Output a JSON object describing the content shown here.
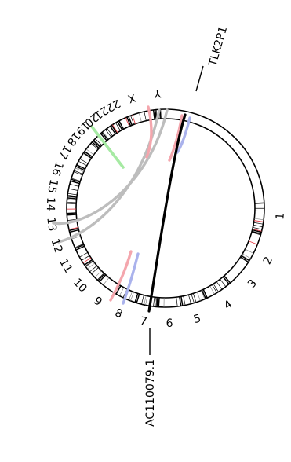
{
  "chromosomes": [
    {
      "label": "1",
      "band_seed": 11
    },
    {
      "label": "2",
      "band_seed": 23
    },
    {
      "label": "3",
      "band_seed": 37
    },
    {
      "label": "4",
      "band_seed": 41
    },
    {
      "label": "5",
      "band_seed": 53
    },
    {
      "label": "6",
      "band_seed": 61
    },
    {
      "label": "7",
      "band_seed": 71
    },
    {
      "label": "8",
      "band_seed": 83
    },
    {
      "label": "9",
      "band_seed": 97
    },
    {
      "label": "10",
      "band_seed": 101
    },
    {
      "label": "11",
      "band_seed": 113
    },
    {
      "label": "12",
      "band_seed": 127
    },
    {
      "label": "13",
      "band_seed": 131
    },
    {
      "label": "14",
      "band_seed": 137
    },
    {
      "label": "15",
      "band_seed": 149
    },
    {
      "label": "16",
      "band_seed": 151
    },
    {
      "label": "17",
      "band_seed": 163
    },
    {
      "label": "18",
      "band_seed": 167
    },
    {
      "label": "19",
      "band_seed": 173
    },
    {
      "label": "20",
      "band_seed": 179
    },
    {
      "label": "21",
      "band_seed": 181
    },
    {
      "label": "22",
      "band_seed": 191
    },
    {
      "label": "X",
      "band_seed": 193
    },
    {
      "label": "Y",
      "band_seed": 197
    }
  ],
  "gene_labels": {
    "top": "TLK2P1",
    "bottom": "AC110079.1"
  },
  "colors": {
    "highlight_link": "#000000",
    "grey_link": "#bdbdbd",
    "red_link": "#f4a6ad",
    "blue_link": "#aab2ec",
    "green_link": "#a6eaa3",
    "band_red": "#e8424b",
    "band_dark": "#000000"
  },
  "links": [
    {
      "name": "highlight-link",
      "color_key": "highlight_link",
      "from": "17",
      "to": "4"
    },
    {
      "name": "grey-link-a",
      "color_key": "grey_link",
      "from": "16",
      "to": "8"
    },
    {
      "name": "grey-link-b",
      "color_key": "grey_link",
      "from": "16",
      "to": "8"
    },
    {
      "name": "red-link-a",
      "color_key": "red_link",
      "from": "15",
      "to": "15"
    },
    {
      "name": "red-link-b",
      "color_key": "red_link",
      "from": "17",
      "to": "17"
    },
    {
      "name": "red-link-c",
      "color_key": "red_link",
      "from": "5",
      "to": "6"
    },
    {
      "name": "blue-link-a",
      "color_key": "blue_link",
      "from": "17",
      "to": "17"
    },
    {
      "name": "blue-link-b",
      "color_key": "blue_link",
      "from": "5",
      "to": "6"
    },
    {
      "name": "green-link",
      "color_key": "green_link",
      "from": "12",
      "to": "11"
    }
  ]
}
